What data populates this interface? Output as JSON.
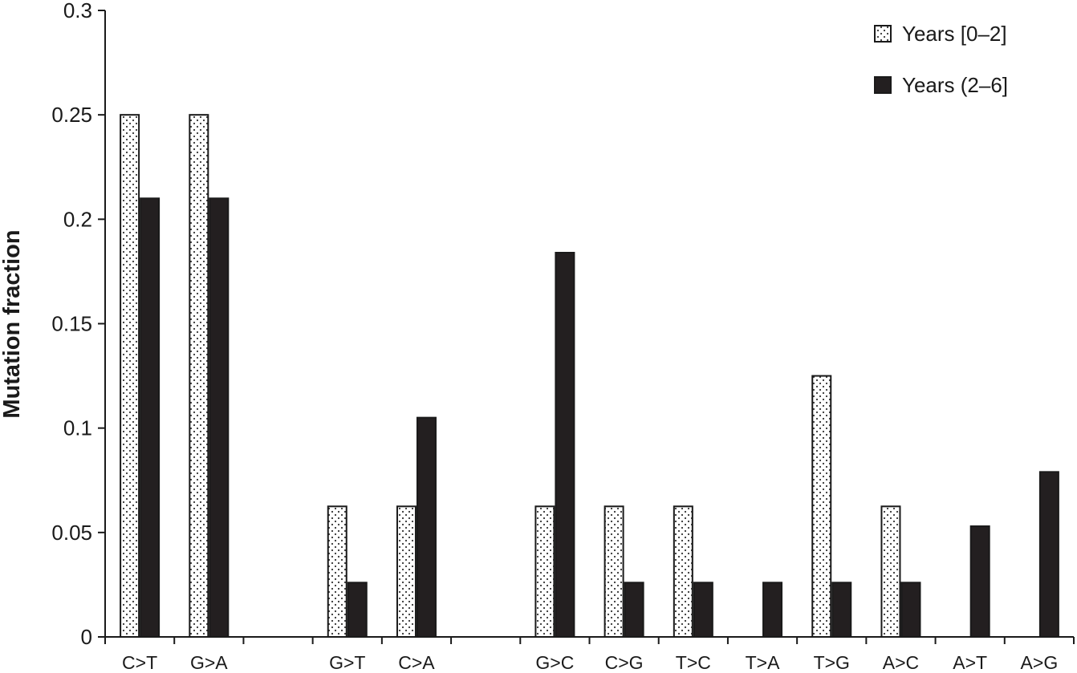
{
  "chart_data": {
    "type": "bar",
    "title": "",
    "xlabel": "",
    "ylabel": "Mutation fraction",
    "ylim": [
      0,
      0.3
    ],
    "yticks": [
      "0",
      "0.05",
      "0.1",
      "0.15",
      "0.2",
      "0.25",
      "0.3"
    ],
    "categories": [
      "C>T",
      "G>A",
      "",
      "G>T",
      "C>A",
      "",
      "G>C",
      "C>G",
      "T>C",
      "T>A",
      "T>G",
      "A>C",
      "A>T",
      "A>G"
    ],
    "series": [
      {
        "name": "Years [0–2]",
        "pattern": "dotted",
        "values": [
          0.25,
          0.25,
          null,
          0.0625,
          0.0625,
          null,
          0.0625,
          0.0625,
          0.0625,
          0,
          0.125,
          0.0625,
          0,
          0
        ]
      },
      {
        "name": "Years (2–6]",
        "color": "#231f20",
        "values": [
          0.21,
          0.21,
          null,
          0.026,
          0.105,
          null,
          0.184,
          0.026,
          0.026,
          0.026,
          0.026,
          0.026,
          0.053,
          0.079
        ]
      }
    ],
    "grid": false,
    "legend_position": "top-right"
  }
}
